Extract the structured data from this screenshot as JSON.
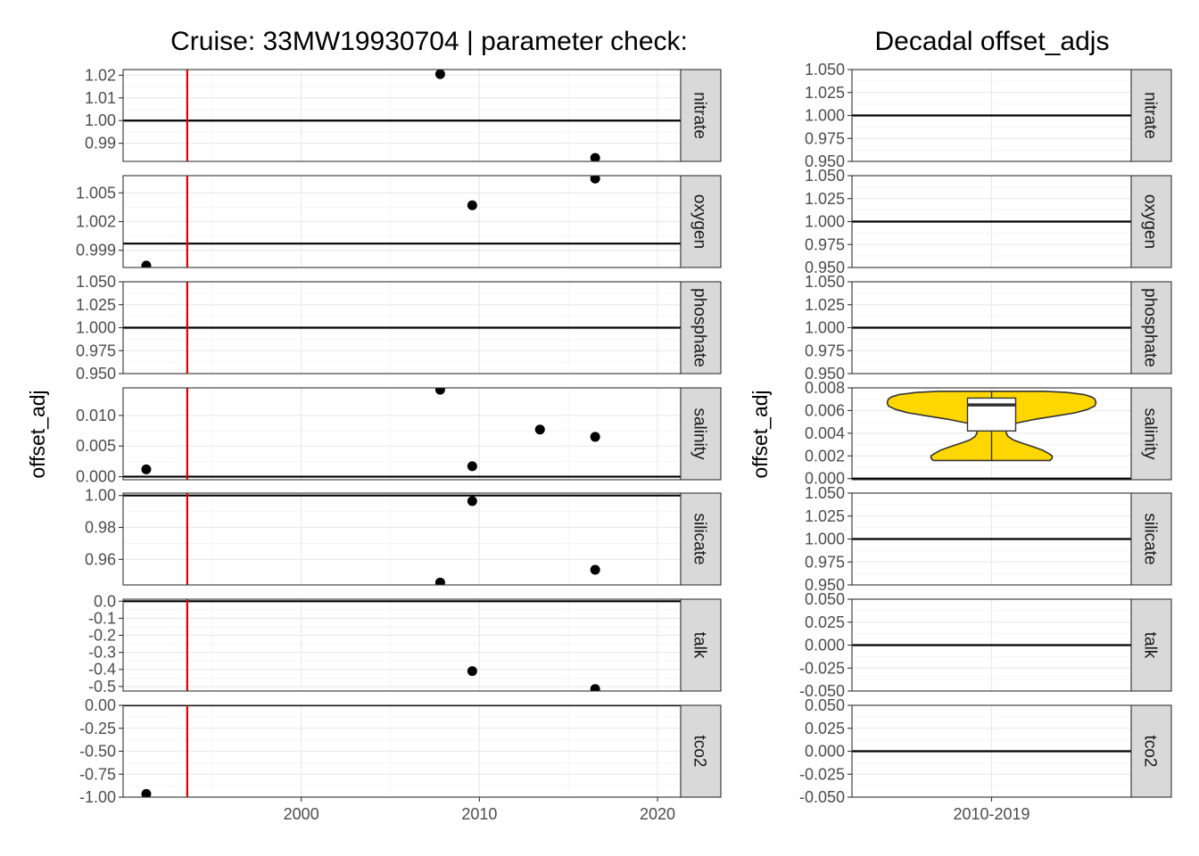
{
  "chart_data": [
    {
      "type": "scatter",
      "title": "Cruise: 33MW19930704 | parameter check:",
      "ylabel": "offset_adj",
      "xlim": [
        1990.0,
        2021.3
      ],
      "x_ticks": [
        2000,
        2010,
        2020
      ],
      "x_minor_ticks": [
        1995,
        2005,
        2015
      ],
      "reference_line_color": "#dd0000",
      "cruise_year": 1993.6,
      "point_color": "#000000",
      "grid": true,
      "panels": [
        {
          "name": "nitrate",
          "ylim": [
            0.982,
            1.0225
          ],
          "yticks": [
            0.99,
            1.0,
            1.01,
            1.02
          ],
          "tick_labels": [
            "0.99",
            "1.00",
            "1.01",
            "1.02"
          ],
          "hline": 1.0,
          "points": [
            {
              "x": 2007.8,
              "y": 1.0205
            },
            {
              "x": 2016.5,
              "y": 0.9835
            }
          ]
        },
        {
          "name": "oxygen",
          "ylim": [
            0.9972,
            1.0068
          ],
          "yticks": [
            0.999,
            1.002,
            1.005
          ],
          "tick_labels": [
            "0.999",
            "1.002",
            "1.005"
          ],
          "hline": 0.9997,
          "points": [
            {
              "x": 1991.3,
              "y": 0.9974
            },
            {
              "x": 2009.6,
              "y": 1.0037
            },
            {
              "x": 2016.5,
              "y": 1.0065
            }
          ]
        },
        {
          "name": "phosphate",
          "ylim": [
            0.95,
            1.05
          ],
          "yticks": [
            0.95,
            0.975,
            1.0,
            1.025,
            1.05
          ],
          "tick_labels": [
            "0.950",
            "0.975",
            "1.000",
            "1.025",
            "1.050"
          ],
          "hline": 1.0,
          "points": []
        },
        {
          "name": "salinity",
          "ylim": [
            -0.0005,
            0.0145
          ],
          "yticks": [
            0.0,
            0.005,
            0.01
          ],
          "tick_labels": [
            "0.000",
            "0.005",
            "0.010"
          ],
          "hline": 0.0,
          "points": [
            {
              "x": 1991.3,
              "y": 0.0012
            },
            {
              "x": 2007.8,
              "y": 0.0142
            },
            {
              "x": 2009.6,
              "y": 0.0017
            },
            {
              "x": 2013.4,
              "y": 0.0077
            },
            {
              "x": 2016.5,
              "y": 0.0065
            }
          ]
        },
        {
          "name": "silicate",
          "ylim": [
            0.944,
            1.0015
          ],
          "yticks": [
            0.96,
            0.98,
            1.0
          ],
          "tick_labels": [
            "0.96",
            "0.98",
            "1.00"
          ],
          "hline": 1.0,
          "points": [
            {
              "x": 2007.8,
              "y": 0.9455
            },
            {
              "x": 2009.6,
              "y": 0.9965
            },
            {
              "x": 2016.5,
              "y": 0.9535
            }
          ]
        },
        {
          "name": "talk",
          "ylim": [
            -0.527,
            0.012
          ],
          "yticks": [
            -0.5,
            -0.4,
            -0.3,
            -0.2,
            -0.1,
            0.0
          ],
          "tick_labels": [
            "-0.5",
            "-0.4",
            "-0.3",
            "-0.2",
            "-0.1",
            "0.0"
          ],
          "hline": 0.0,
          "points": [
            {
              "x": 2009.6,
              "y": -0.41
            },
            {
              "x": 2016.5,
              "y": -0.515
            }
          ]
        },
        {
          "name": "tco2",
          "ylim": [
            -1.0,
            0.0
          ],
          "yticks": [
            -1.0,
            -0.75,
            -0.5,
            -0.25,
            0.0
          ],
          "tick_labels": [
            "-1.00",
            "-0.75",
            "-0.50",
            "-0.25",
            "0.00"
          ],
          "hline": 0.0,
          "points": [
            {
              "x": 1991.3,
              "y": -0.965
            }
          ]
        }
      ]
    },
    {
      "type": "violin",
      "title": "Decadal offset_adjs",
      "ylabel": "offset_adj",
      "categories": [
        "2010-2019"
      ],
      "fill_color": "#ffd700",
      "grid": true,
      "panels": [
        {
          "name": "nitrate",
          "ylim": [
            0.95,
            1.05
          ],
          "yticks": [
            0.95,
            0.975,
            1.0,
            1.025,
            1.05
          ],
          "tick_labels": [
            "0.950",
            "0.975",
            "1.000",
            "1.025",
            "1.050"
          ],
          "hline": 1.0
        },
        {
          "name": "oxygen",
          "ylim": [
            0.95,
            1.05
          ],
          "yticks": [
            0.95,
            0.975,
            1.0,
            1.025,
            1.05
          ],
          "tick_labels": [
            "0.950",
            "0.975",
            "1.000",
            "1.025",
            "1.050"
          ],
          "hline": 1.0
        },
        {
          "name": "phosphate",
          "ylim": [
            0.95,
            1.05
          ],
          "yticks": [
            0.95,
            0.975,
            1.0,
            1.025,
            1.05
          ],
          "tick_labels": [
            "0.950",
            "0.975",
            "1.000",
            "1.025",
            "1.050"
          ],
          "hline": 1.0
        },
        {
          "name": "salinity",
          "ylim": [
            -0.0001,
            0.008
          ],
          "yticks": [
            0.0,
            0.002,
            0.004,
            0.006,
            0.008
          ],
          "tick_labels": [
            "0.000",
            "0.002",
            "0.004",
            "0.006",
            "0.008"
          ],
          "hline": 0.0,
          "violin": {
            "range": [
              0.0016,
              0.0077
            ],
            "box": {
              "min": 0.0016,
              "q1": 0.0042,
              "median": 0.0065,
              "q3": 0.0071,
              "max": 0.0077
            },
            "profile": [
              {
                "y": 0.0016,
                "w": 0.56
              },
              {
                "y": 0.0018,
                "w": 0.58
              },
              {
                "y": 0.002,
                "w": 0.58
              },
              {
                "y": 0.0022,
                "w": 0.55
              },
              {
                "y": 0.0025,
                "w": 0.49
              },
              {
                "y": 0.0028,
                "w": 0.4
              },
              {
                "y": 0.0031,
                "w": 0.3
              },
              {
                "y": 0.0034,
                "w": 0.21
              },
              {
                "y": 0.0037,
                "w": 0.16
              },
              {
                "y": 0.004,
                "w": 0.14
              },
              {
                "y": 0.0043,
                "w": 0.14
              },
              {
                "y": 0.0046,
                "w": 0.16
              },
              {
                "y": 0.0049,
                "w": 0.24
              },
              {
                "y": 0.0052,
                "w": 0.4
              },
              {
                "y": 0.0055,
                "w": 0.6
              },
              {
                "y": 0.0058,
                "w": 0.8
              },
              {
                "y": 0.0061,
                "w": 0.92
              },
              {
                "y": 0.0064,
                "w": 0.99
              },
              {
                "y": 0.0067,
                "w": 1.0
              },
              {
                "y": 0.007,
                "w": 0.99
              },
              {
                "y": 0.0072,
                "w": 0.96
              },
              {
                "y": 0.0074,
                "w": 0.89
              },
              {
                "y": 0.0076,
                "w": 0.72
              },
              {
                "y": 0.0077,
                "w": 0.5
              }
            ]
          }
        },
        {
          "name": "silicate",
          "ylim": [
            0.95,
            1.05
          ],
          "yticks": [
            0.95,
            0.975,
            1.0,
            1.025,
            1.05
          ],
          "tick_labels": [
            "0.950",
            "0.975",
            "1.000",
            "1.025",
            "1.050"
          ],
          "hline": 1.0
        },
        {
          "name": "talk",
          "ylim": [
            -0.05,
            0.05
          ],
          "yticks": [
            -0.05,
            -0.025,
            0.0,
            0.025,
            0.05
          ],
          "tick_labels": [
            "-0.050",
            "-0.025",
            "0.000",
            "0.025",
            "0.050"
          ],
          "hline": 0.0
        },
        {
          "name": "tco2",
          "ylim": [
            -0.05,
            0.05
          ],
          "yticks": [
            -0.05,
            -0.025,
            0.0,
            0.025,
            0.05
          ],
          "tick_labels": [
            "-0.050",
            "-0.025",
            "0.000",
            "0.025",
            "0.050"
          ],
          "hline": 0.0
        }
      ]
    }
  ]
}
